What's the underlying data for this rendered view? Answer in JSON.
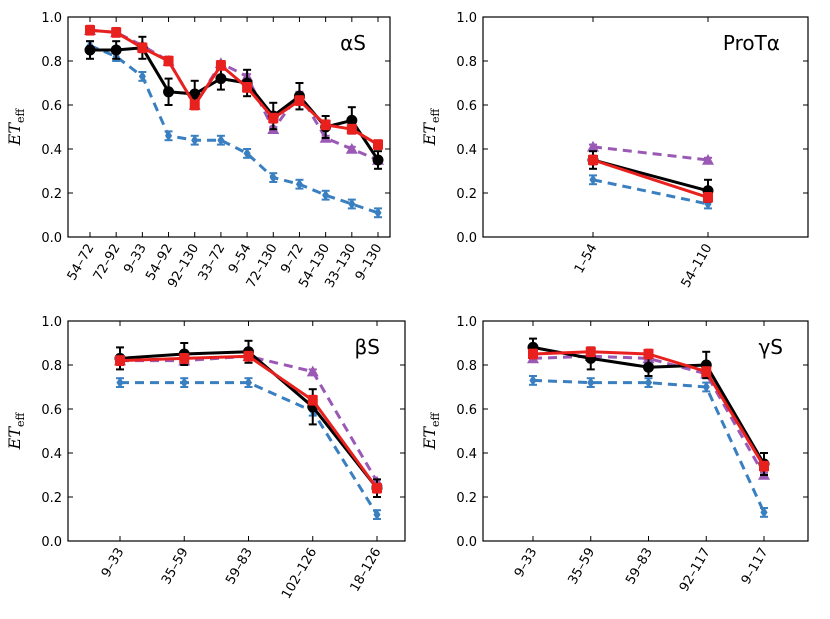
{
  "colors": {
    "black": "#000000",
    "red": "#e8211f",
    "purple": "#9b59b6",
    "blue": "#3a7fc0"
  },
  "chart_data": [
    {
      "type": "line",
      "title": "αS",
      "ylabel": "ET_eff",
      "ylim": [
        0,
        1.0
      ],
      "yticks": [
        "0.0",
        "0.2",
        "0.4",
        "0.6",
        "0.8",
        "1.0"
      ],
      "categories": [
        "54–72",
        "72–92",
        "9–33",
        "54–92",
        "92–130",
        "33–72",
        "9–54",
        "72–130",
        "9–72",
        "54–130",
        "33–130",
        "9–130"
      ],
      "series": [
        {
          "name": "black",
          "style": "solid",
          "marker": "circle",
          "values": [
            0.85,
            0.85,
            0.86,
            0.66,
            0.65,
            0.72,
            0.7,
            0.55,
            0.64,
            0.5,
            0.53,
            0.35
          ],
          "errors": [
            0.04,
            0.04,
            0.05,
            0.06,
            0.06,
            0.05,
            0.06,
            0.06,
            0.06,
            0.05,
            0.06,
            0.04
          ]
        },
        {
          "name": "red",
          "style": "solid",
          "marker": "square",
          "values": [
            0.94,
            0.93,
            0.86,
            0.8,
            0.6,
            0.78,
            0.68,
            0.54,
            0.62,
            0.51,
            0.49,
            0.42
          ],
          "errors": [
            0.02,
            0.02,
            0.02,
            0.02,
            0.02,
            0.02,
            0.02,
            0.02,
            0.02,
            0.02,
            0.02,
            0.02
          ]
        },
        {
          "name": "purple",
          "style": "dashed",
          "marker": "triangle",
          "values": [
            0.94,
            0.93,
            0.87,
            0.8,
            0.6,
            0.79,
            0.73,
            0.49,
            0.65,
            0.45,
            0.4,
            0.35
          ],
          "errors": [
            0.01,
            0.01,
            0.01,
            0.01,
            0.01,
            0.01,
            0.01,
            0.01,
            0.01,
            0.01,
            0.01,
            0.01
          ]
        },
        {
          "name": "blue",
          "style": "dashed",
          "marker": "diamond",
          "values": [
            0.87,
            0.82,
            0.73,
            0.46,
            0.44,
            0.44,
            0.38,
            0.27,
            0.24,
            0.19,
            0.15,
            0.11
          ],
          "errors": [
            0.02,
            0.02,
            0.02,
            0.02,
            0.02,
            0.02,
            0.02,
            0.02,
            0.02,
            0.02,
            0.02,
            0.02
          ]
        }
      ]
    },
    {
      "type": "line",
      "title": "ProTα",
      "ylabel": "ET_eff",
      "ylim": [
        0,
        1.0
      ],
      "yticks": [
        "0.0",
        "0.2",
        "0.4",
        "0.6",
        "0.8",
        "1.0"
      ],
      "categories": [
        "1–54",
        "54–110"
      ],
      "series": [
        {
          "name": "black",
          "style": "solid",
          "marker": "circle",
          "values": [
            0.35,
            0.21
          ],
          "errors": [
            0.04,
            0.05
          ]
        },
        {
          "name": "red",
          "style": "solid",
          "marker": "square",
          "values": [
            0.35,
            0.18
          ],
          "errors": [
            0.02,
            0.02
          ]
        },
        {
          "name": "purple",
          "style": "dashed",
          "marker": "triangle",
          "values": [
            0.41,
            0.35
          ],
          "errors": [
            0.01,
            0.01
          ]
        },
        {
          "name": "blue",
          "style": "dashed",
          "marker": "diamond",
          "values": [
            0.26,
            0.15
          ],
          "errors": [
            0.02,
            0.02
          ]
        }
      ]
    },
    {
      "type": "line",
      "title": "βS",
      "ylabel": "ET_eff",
      "ylim": [
        0,
        1.0
      ],
      "yticks": [
        "0.0",
        "0.2",
        "0.4",
        "0.6",
        "0.8",
        "1.0"
      ],
      "categories": [
        "9–33",
        "35–59",
        "59–83",
        "102–126",
        "18–126"
      ],
      "series": [
        {
          "name": "black",
          "style": "solid",
          "marker": "circle",
          "values": [
            0.83,
            0.85,
            0.86,
            0.61,
            0.24
          ],
          "errors": [
            0.05,
            0.05,
            0.05,
            0.08,
            0.04
          ]
        },
        {
          "name": "red",
          "style": "solid",
          "marker": "square",
          "values": [
            0.82,
            0.83,
            0.84,
            0.64,
            0.24
          ],
          "errors": [
            0.02,
            0.02,
            0.02,
            0.02,
            0.02
          ]
        },
        {
          "name": "purple",
          "style": "dashed",
          "marker": "triangle",
          "values": [
            0.82,
            0.82,
            0.84,
            0.77,
            0.27
          ],
          "errors": [
            0.01,
            0.01,
            0.01,
            0.01,
            0.01
          ]
        },
        {
          "name": "blue",
          "style": "dashed",
          "marker": "diamond",
          "values": [
            0.72,
            0.72,
            0.72,
            0.59,
            0.12
          ],
          "errors": [
            0.02,
            0.02,
            0.02,
            0.02,
            0.02
          ]
        }
      ]
    },
    {
      "type": "line",
      "title": "γS",
      "ylabel": "ET_eff",
      "ylim": [
        0,
        1.0
      ],
      "yticks": [
        "0.0",
        "0.2",
        "0.4",
        "0.6",
        "0.8",
        "1.0"
      ],
      "categories": [
        "9–33",
        "35–59",
        "59–83",
        "92–117",
        "9–117"
      ],
      "series": [
        {
          "name": "black",
          "style": "solid",
          "marker": "circle",
          "values": [
            0.88,
            0.83,
            0.79,
            0.8,
            0.35
          ],
          "errors": [
            0.04,
            0.05,
            0.04,
            0.06,
            0.05
          ]
        },
        {
          "name": "red",
          "style": "solid",
          "marker": "square",
          "values": [
            0.85,
            0.86,
            0.85,
            0.77,
            0.34
          ],
          "errors": [
            0.02,
            0.02,
            0.02,
            0.02,
            0.02
          ]
        },
        {
          "name": "purple",
          "style": "dashed",
          "marker": "triangle",
          "values": [
            0.83,
            0.84,
            0.83,
            0.76,
            0.3
          ],
          "errors": [
            0.01,
            0.01,
            0.01,
            0.01,
            0.01
          ]
        },
        {
          "name": "blue",
          "style": "dashed",
          "marker": "diamond",
          "values": [
            0.73,
            0.72,
            0.72,
            0.7,
            0.13
          ],
          "errors": [
            0.02,
            0.02,
            0.02,
            0.02,
            0.02
          ]
        }
      ]
    }
  ]
}
